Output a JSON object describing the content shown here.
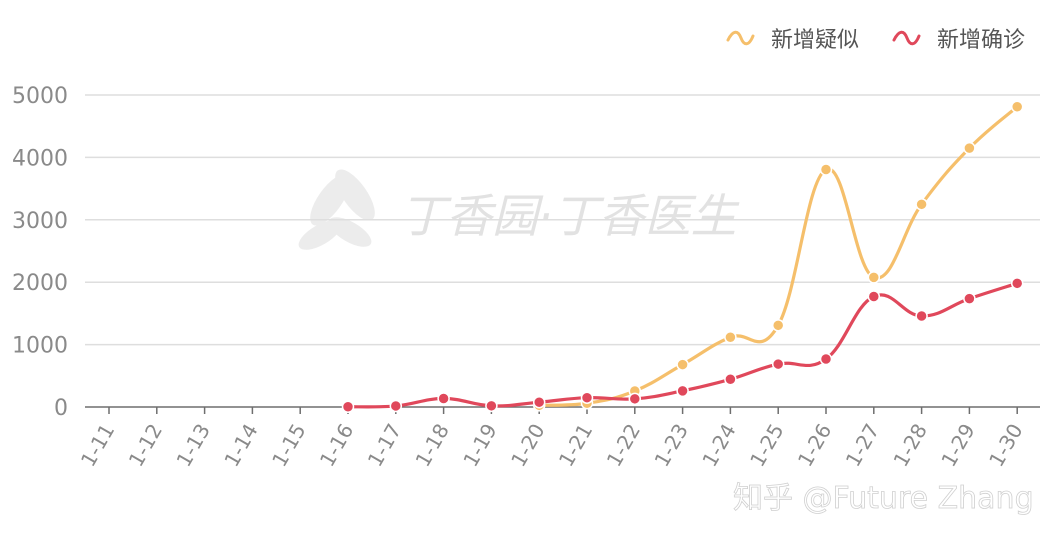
{
  "chart_data": {
    "type": "line",
    "categories": [
      "1-11",
      "1-12",
      "1-13",
      "1-14",
      "1-15",
      "1-16",
      "1-17",
      "1-18",
      "1-19",
      "1-20",
      "1-21",
      "1-22",
      "1-23",
      "1-24",
      "1-25",
      "1-26",
      "1-27",
      "1-28",
      "1-29",
      "1-30"
    ],
    "series": [
      {
        "name": "新增疑似",
        "color": "#f5bf6b",
        "values": [
          null,
          null,
          null,
          null,
          null,
          null,
          null,
          null,
          null,
          27,
          60,
          257,
          680,
          1118,
          1309,
          3806,
          2077,
          3248,
          4148,
          4812
        ]
      },
      {
        "name": "新增确诊",
        "color": "#e0485b",
        "values": [
          null,
          null,
          null,
          null,
          null,
          4,
          17,
          136,
          19,
          77,
          149,
          131,
          259,
          444,
          688,
          769,
          1771,
          1459,
          1737,
          1982
        ]
      }
    ],
    "ylim": [
      0,
      5000
    ],
    "yticks": [
      0,
      1000,
      2000,
      3000,
      4000,
      5000
    ],
    "grid": true,
    "legend_position": "top-right"
  },
  "watermark": {
    "text": "丁香园·丁香医生",
    "logo_icon": "leaf-icon"
  },
  "credit": {
    "text": "知乎 @Future Zhang"
  }
}
